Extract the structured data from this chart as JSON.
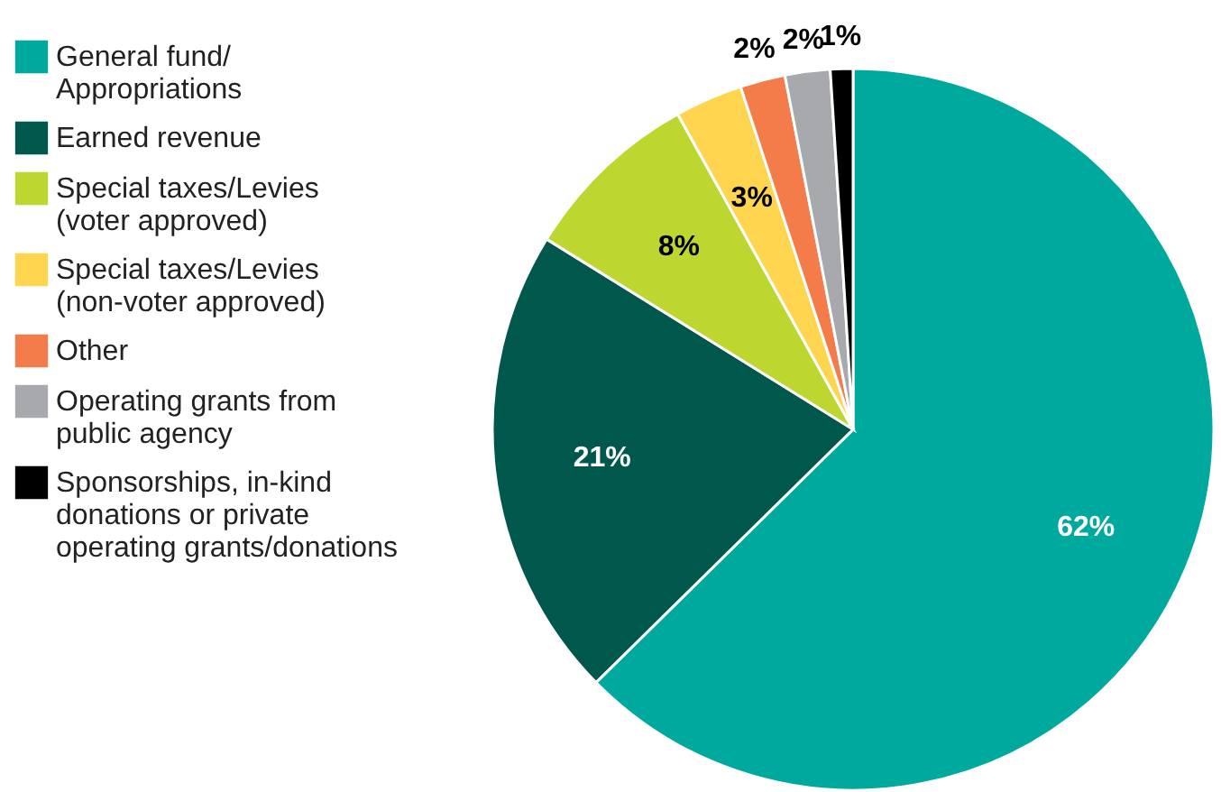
{
  "chart_data": {
    "type": "pie",
    "categories": [
      "General fund/Appropriations",
      "Earned revenue",
      "Special taxes/Levies (voter approved)",
      "Special taxes/Levies (non-voter approved)",
      "Other",
      "Operating grants from public agency",
      "Sponsorships, in-kind donations or private operating grants/donations"
    ],
    "values": [
      62,
      21,
      8,
      3,
      2,
      2,
      1
    ],
    "value_labels": [
      "62%",
      "21%",
      "8%",
      "3%",
      "2%",
      "2%",
      "1%"
    ],
    "colors": [
      "#00a99d",
      "#00574b",
      "#bed630",
      "#ffd54f",
      "#f47b4a",
      "#a7a9ac",
      "#000000"
    ],
    "legend": "left"
  }
}
